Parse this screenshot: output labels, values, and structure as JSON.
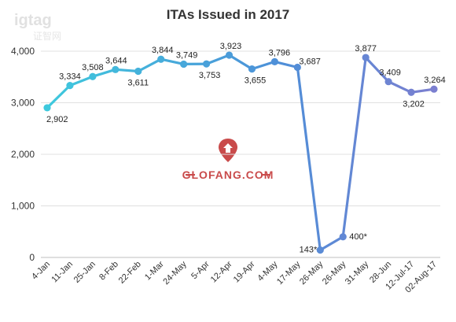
{
  "chart_data": {
    "type": "line",
    "title": "ITAs Issued in 2017",
    "xlabel": "",
    "ylabel": "",
    "ylim": [
      0,
      4000
    ],
    "yticks": [
      0,
      1000,
      2000,
      3000,
      4000
    ],
    "ytick_labels": [
      "0",
      "1,000",
      "2,000",
      "3,000",
      "4,000"
    ],
    "grid": true,
    "legend": "none",
    "categories": [
      "4-Jan",
      "11-Jan",
      "25-Jan",
      "8-Feb",
      "22-Feb",
      "1-Mar",
      "24-May",
      "5-Apr",
      "12-Apr",
      "19-Apr",
      "4-May",
      "17-May",
      "26-May",
      "26-May",
      "31-May",
      "28-Jun",
      "12-Jul-17",
      "02-Aug-17"
    ],
    "values": [
      2902,
      3334,
      3508,
      3644,
      3611,
      3844,
      3749,
      3753,
      3923,
      3655,
      3796,
      3687,
      143,
      400,
      3877,
      3409,
      3202,
      3264
    ],
    "data_labels": [
      "2,902",
      "3,334",
      "3,508",
      "3,644",
      "3,611",
      "3,844",
      "3,749",
      "3,753",
      "3,923",
      "3,655",
      "3,796",
      "3,687",
      "143*",
      "400*",
      "3,877",
      "3,409",
      "3,202",
      "3,264"
    ],
    "colors": {
      "line_start": "#3ec9dd",
      "line_mid": "#4e8fd8",
      "line_end": "#7b7fd0",
      "grid": "#e0e0e0",
      "axis": "#bfbfbf"
    }
  },
  "watermark": {
    "top_text": "igtag",
    "sub_text": "证智网",
    "main_text": "GLOFANG.COM",
    "accent": "#c94b4b"
  }
}
